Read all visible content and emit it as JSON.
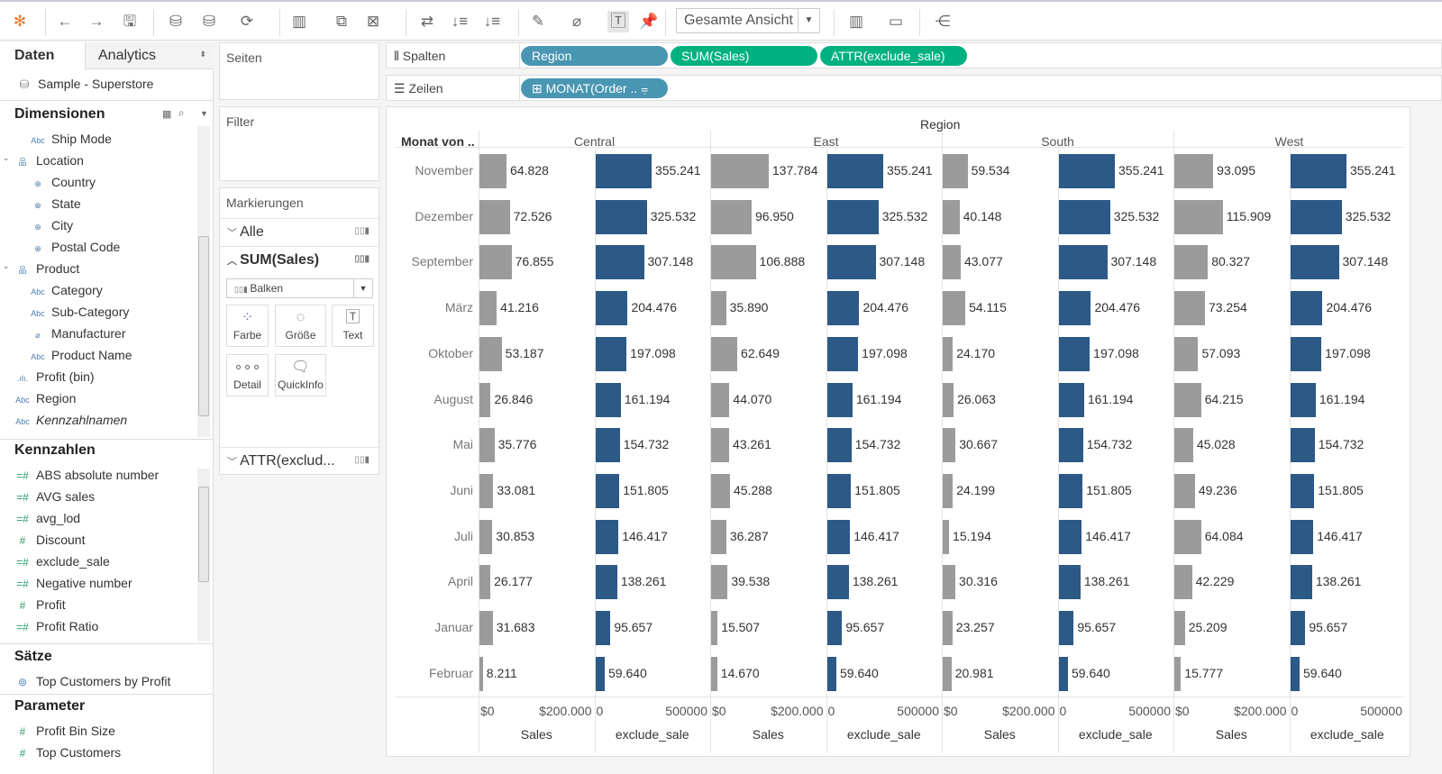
{
  "toolbar": {
    "view_select": "Gesamte Ansicht",
    "icons": [
      "tableau-logo-icon",
      "back-icon",
      "forward-icon",
      "save-icon",
      "new-datasource-icon",
      "pause-updates-icon",
      "refresh-icon",
      "new-sheet-icon",
      "duplicate-sheet-icon",
      "clear-sheet-icon",
      "swap-icon",
      "sort-ascending-icon",
      "sort-descending-icon",
      "highlight-icon",
      "group-icon",
      "show-labels-icon",
      "pin-icon",
      "show-me-icon",
      "presentation-icon",
      "share-icon"
    ]
  },
  "left": {
    "tabs": [
      "Daten",
      "Analytics"
    ],
    "datasource": "Sample - Superstore",
    "dimensions_title": "Dimensionen",
    "dimensions": [
      {
        "label": "Ship Mode",
        "type": "Abc",
        "indent": 2
      },
      {
        "label": "Location",
        "type": "hier",
        "indent": 1
      },
      {
        "label": "Country",
        "type": "geo",
        "indent": 2
      },
      {
        "label": "State",
        "type": "geo",
        "indent": 2
      },
      {
        "label": "City",
        "type": "geo",
        "indent": 2
      },
      {
        "label": "Postal Code",
        "type": "geo",
        "indent": 2
      },
      {
        "label": "Product",
        "type": "hier",
        "indent": 1
      },
      {
        "label": "Category",
        "type": "Abc",
        "indent": 2
      },
      {
        "label": "Sub-Category",
        "type": "Abc",
        "indent": 2
      },
      {
        "label": "Manufacturer",
        "type": "link",
        "indent": 2
      },
      {
        "label": "Product Name",
        "type": "Abc",
        "indent": 2
      },
      {
        "label": "Profit (bin)",
        "type": "bin",
        "indent": 1
      },
      {
        "label": "Region",
        "type": "Abc",
        "indent": 1
      },
      {
        "label": "Kennzahlnamen",
        "type": "Abc",
        "indent": 1,
        "italic": true
      }
    ],
    "measures_title": "Kennzahlen",
    "measures": [
      "ABS absolute number",
      "AVG sales",
      "avg_lod",
      "Discount",
      "exclude_sale",
      "Negative number",
      "Profit",
      "Profit Ratio"
    ],
    "sets_title": "Sätze",
    "sets": [
      "Top Customers by Profit"
    ],
    "params_title": "Parameter",
    "params": [
      "Profit Bin Size",
      "Top Customers"
    ]
  },
  "cards": {
    "pages": "Seiten",
    "filters": "Filter",
    "marks": "Markierungen",
    "all": "Alle",
    "sum_sales": "SUM(Sales)",
    "mark_type": "Balken",
    "buttons": [
      "Farbe",
      "Größe",
      "Text",
      "Detail",
      "QuickInfo"
    ],
    "attr": "ATTR(exclud..."
  },
  "shelves": {
    "columns_label": "Spalten",
    "rows_label": "Zeilen",
    "columns": [
      {
        "label": "Region",
        "color": "#4996b2"
      },
      {
        "label": "SUM(Sales)",
        "color": "#00b180"
      },
      {
        "label": "ATTR(exclude_sale)",
        "color": "#00b180"
      }
    ],
    "rows": [
      {
        "label": "⊞ MONAT(Order .. ⩦",
        "color": "#4996b2"
      }
    ]
  },
  "chart_data": {
    "type": "bar",
    "orientation": "horizontal",
    "title": "Region",
    "row_header": "Monat von ..",
    "regions": [
      "Central",
      "East",
      "South",
      "West"
    ],
    "categories": [
      "November",
      "Dezember",
      "September",
      "März",
      "Oktober",
      "August",
      "Mai",
      "Juni",
      "Juli",
      "April",
      "Januar",
      "Februar"
    ],
    "sales": {
      "Central": [
        64828,
        72526,
        76855,
        41216,
        53187,
        26846,
        35776,
        33081,
        30853,
        26177,
        31683,
        8211
      ],
      "East": [
        137784,
        96950,
        106888,
        35890,
        62649,
        44070,
        43261,
        45288,
        36287,
        39538,
        15507,
        14670
      ],
      "South": [
        59534,
        40148,
        43077,
        54115,
        24170,
        26063,
        30667,
        24199,
        15194,
        30316,
        23257,
        20981
      ],
      "West": [
        93095,
        115909,
        80327,
        73254,
        57093,
        64215,
        45028,
        49236,
        64084,
        42229,
        25209,
        15777
      ]
    },
    "exclude_sale": [
      355241,
      325532,
      307148,
      204476,
      197098,
      161194,
      154732,
      151805,
      146417,
      138261,
      95657,
      59640
    ],
    "axes": [
      {
        "label": "Sales",
        "ticks": [
          "$0",
          "$200.000"
        ],
        "xlim": [
          0,
          275000
        ],
        "color": "#9b9b9b"
      },
      {
        "label": "exclude_sale",
        "ticks": [
          "0",
          "500000"
        ],
        "xlim": [
          0,
          725000
        ],
        "color": "#2c5985"
      }
    ],
    "grid": false,
    "legend": "none"
  }
}
